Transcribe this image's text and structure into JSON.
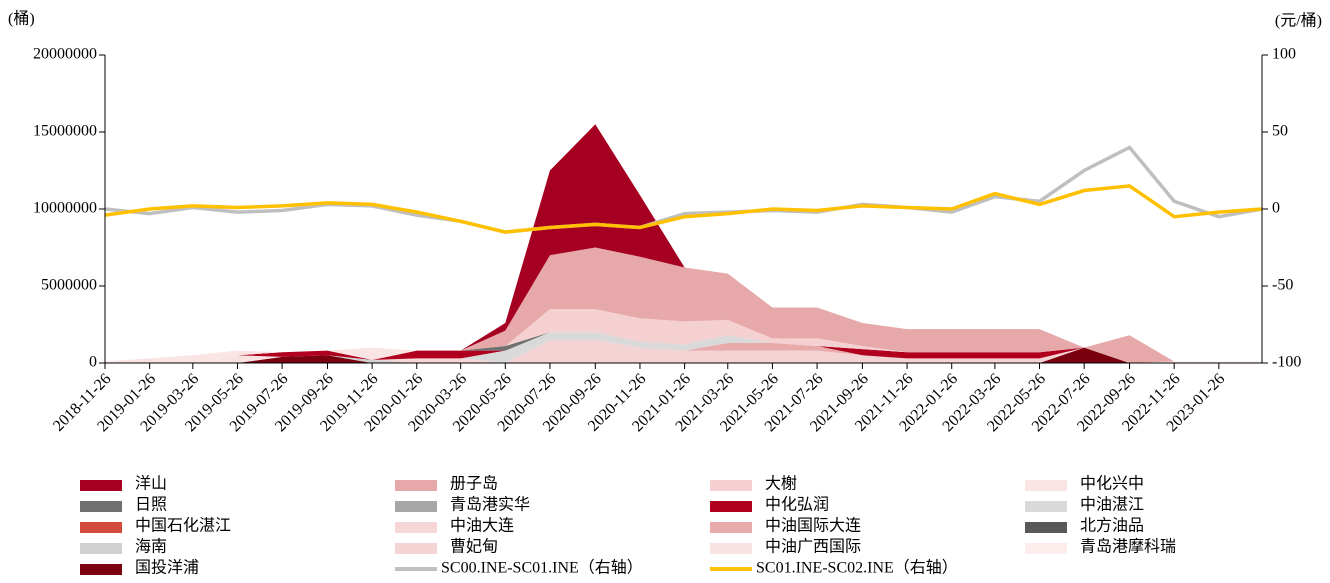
{
  "chart_data": {
    "type": "stacked-area-line",
    "y_unit_label": "(桶)",
    "y2_unit_label": "(元/桶)",
    "x": [
      "2018-11-26",
      "2019-01-26",
      "2019-03-26",
      "2019-05-26",
      "2019-07-26",
      "2019-09-26",
      "2019-11-26",
      "2020-01-26",
      "2020-03-26",
      "2020-05-26",
      "2020-07-26",
      "2020-09-26",
      "2020-11-26",
      "2021-01-26",
      "2021-03-26",
      "2021-05-26",
      "2021-07-26",
      "2021-09-26",
      "2021-11-26",
      "2022-01-26",
      "2022-03-26",
      "2022-05-26",
      "2022-07-26",
      "2022-09-26",
      "2022-11-26",
      "2023-01-26",
      "2023-03-26"
    ],
    "xlim": [
      "2018-11-26",
      "2023-03-26"
    ],
    "xticks": [
      "2018-11-26",
      "2019-01-26",
      "2019-03-26",
      "2019-05-26",
      "2019-07-26",
      "2019-09-26",
      "2019-11-26",
      "2020-01-26",
      "2020-03-26",
      "2020-05-26",
      "2020-07-26",
      "2020-09-26",
      "2020-11-26",
      "2021-01-26",
      "2021-03-26",
      "2021-05-26",
      "2021-07-26",
      "2021-09-26",
      "2021-11-26",
      "2022-01-26",
      "2022-03-26",
      "2022-05-26",
      "2022-07-26",
      "2022-09-26",
      "2022-11-26",
      "2023-01-26"
    ],
    "ylim": [
      0,
      20000000
    ],
    "yticks": [
      0,
      5000000,
      10000000,
      15000000,
      20000000
    ],
    "y2lim": [
      -100,
      100
    ],
    "y2ticks": [
      -100,
      -50,
      0,
      50,
      100
    ],
    "series": [
      {
        "name": "洋山",
        "color": "#a50021",
        "values": [
          0,
          0,
          0,
          0,
          0,
          0,
          0,
          0,
          0,
          500000,
          5500000,
          8000000,
          4000000,
          0,
          0,
          0,
          0,
          0,
          0,
          0,
          0,
          0,
          0,
          0,
          0,
          0,
          0
        ]
      },
      {
        "name": "册子岛",
        "color": "#e6a8a8",
        "values": [
          0,
          0,
          0,
          0,
          0,
          0,
          0,
          0,
          0,
          1000000,
          3500000,
          4000000,
          4000000,
          3500000,
          3000000,
          2000000,
          2000000,
          1500000,
          1500000,
          1500000,
          1500000,
          1500000,
          0,
          1800000,
          0,
          0,
          0
        ]
      },
      {
        "name": "大榭",
        "color": "#f5d0d0",
        "values": [
          0,
          0,
          0,
          0,
          0,
          0,
          0,
          0,
          0,
          0,
          1500000,
          1500000,
          1500000,
          1500000,
          1000000,
          300000,
          500000,
          200000,
          0,
          0,
          0,
          0,
          0,
          0,
          0,
          0,
          0
        ]
      },
      {
        "name": "中化兴中",
        "color": "#fbe4e4",
        "values": [
          0,
          0,
          500000,
          300000,
          0,
          0,
          800000,
          0,
          0,
          0,
          0,
          0,
          0,
          0,
          0,
          0,
          0,
          0,
          0,
          0,
          0,
          0,
          0,
          0,
          0,
          0,
          0
        ]
      },
      {
        "name": "日照",
        "color": "#707070",
        "values": [
          0,
          0,
          0,
          0,
          0,
          0,
          0,
          0,
          0,
          300000,
          0,
          0,
          0,
          0,
          0,
          0,
          0,
          0,
          0,
          0,
          0,
          0,
          0,
          0,
          0,
          0,
          0
        ]
      },
      {
        "name": "青岛港实华",
        "color": "#a6a6a6",
        "values": [
          0,
          0,
          0,
          0,
          0,
          0,
          0,
          0,
          0,
          0,
          0,
          0,
          0,
          0,
          0,
          0,
          0,
          0,
          0,
          0,
          0,
          0,
          0,
          0,
          0,
          0,
          0
        ]
      },
      {
        "name": "中化弘润",
        "color": "#b0001e",
        "values": [
          0,
          0,
          0,
          0,
          300000,
          300000,
          0,
          500000,
          500000,
          0,
          0,
          0,
          0,
          0,
          0,
          0,
          0,
          400000,
          400000,
          400000,
          400000,
          400000,
          0,
          0,
          0,
          0,
          0
        ]
      },
      {
        "name": "中油湛江",
        "color": "#d9d9d9",
        "values": [
          0,
          0,
          0,
          0,
          0,
          0,
          0,
          0,
          0,
          800000,
          500000,
          500000,
          400000,
          400000,
          500000,
          0,
          0,
          0,
          0,
          0,
          0,
          0,
          0,
          0,
          0,
          0,
          0
        ]
      },
      {
        "name": "中国石化湛江",
        "color": "#d24b3c",
        "values": [
          0,
          0,
          0,
          0,
          0,
          0,
          0,
          0,
          0,
          0,
          0,
          0,
          0,
          0,
          0,
          0,
          0,
          0,
          0,
          0,
          0,
          0,
          0,
          0,
          0,
          0,
          0
        ]
      },
      {
        "name": "中油大连",
        "color": "#f6d6d6",
        "values": [
          0,
          0,
          0,
          0,
          0,
          0,
          0,
          300000,
          300000,
          0,
          0,
          0,
          0,
          0,
          0,
          0,
          0,
          0,
          0,
          0,
          0,
          0,
          0,
          0,
          0,
          0,
          0
        ]
      },
      {
        "name": "中油国际大连",
        "color": "#e8aaaa",
        "values": [
          0,
          0,
          0,
          0,
          0,
          0,
          0,
          0,
          0,
          0,
          0,
          0,
          0,
          0,
          500000,
          500000,
          300000,
          0,
          0,
          0,
          0,
          0,
          0,
          0,
          0,
          0,
          0
        ]
      },
      {
        "name": "北方油品",
        "color": "#595959",
        "values": [
          0,
          0,
          0,
          0,
          0,
          0,
          0,
          0,
          0,
          0,
          0,
          0,
          0,
          0,
          0,
          0,
          0,
          0,
          0,
          0,
          0,
          0,
          0,
          0,
          0,
          0,
          0
        ]
      },
      {
        "name": "海南",
        "color": "#d0d0d0",
        "values": [
          0,
          0,
          0,
          0,
          0,
          0,
          200000,
          0,
          0,
          0,
          0,
          0,
          0,
          0,
          0,
          0,
          0,
          0,
          0,
          0,
          0,
          0,
          0,
          0,
          0,
          0,
          0
        ]
      },
      {
        "name": "曹妃甸",
        "color": "#f3d3d3",
        "values": [
          0,
          0,
          0,
          0,
          0,
          0,
          0,
          0,
          0,
          0,
          1500000,
          1500000,
          1000000,
          800000,
          800000,
          800000,
          800000,
          500000,
          300000,
          300000,
          300000,
          300000,
          0,
          0,
          0,
          0,
          0
        ]
      },
      {
        "name": "中油广西国际",
        "color": "#f8e2e2",
        "values": [
          0,
          300000,
          0,
          500000,
          0,
          0,
          0,
          0,
          0,
          0,
          0,
          0,
          0,
          0,
          0,
          0,
          0,
          0,
          0,
          0,
          0,
          0,
          0,
          0,
          0,
          0,
          0
        ]
      },
      {
        "name": "青岛港摩科瑞",
        "color": "#fcecec",
        "values": [
          100000,
          0,
          0,
          0,
          0,
          0,
          0,
          0,
          0,
          0,
          0,
          0,
          0,
          0,
          0,
          0,
          0,
          0,
          0,
          0,
          0,
          0,
          0,
          0,
          100000,
          100000,
          100000
        ]
      },
      {
        "name": "国投洋浦",
        "color": "#7a0010",
        "values": [
          0,
          0,
          0,
          0,
          400000,
          500000,
          0,
          0,
          0,
          0,
          0,
          0,
          0,
          0,
          0,
          0,
          0,
          0,
          0,
          0,
          0,
          0,
          1000000,
          0,
          0,
          0,
          0
        ]
      },
      {
        "name": "SC00.INE-SC01.INE（右轴）",
        "color": "#bfbfbf",
        "axis": "y2",
        "values": [
          0,
          -3,
          1,
          -2,
          -1,
          3,
          2,
          -4,
          -8,
          -15,
          -12,
          -10,
          -12,
          -3,
          -2,
          -1,
          -2,
          3,
          1,
          -2,
          8,
          5,
          25,
          40,
          5,
          -5,
          0
        ]
      },
      {
        "name": "SC01.INE-SC02.INE（右轴）",
        "color": "#ffc000",
        "axis": "y2",
        "values": [
          -4,
          0,
          2,
          1,
          2,
          4,
          3,
          -2,
          -8,
          -15,
          -12,
          -10,
          -12,
          -5,
          -3,
          0,
          -1,
          2,
          1,
          0,
          10,
          3,
          12,
          15,
          -5,
          -2,
          0
        ]
      }
    ]
  }
}
